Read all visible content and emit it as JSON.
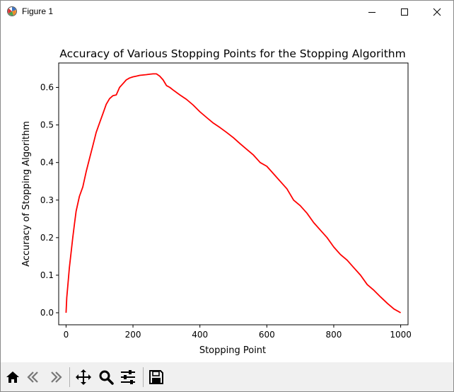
{
  "window": {
    "title": "Figure 1",
    "minimize_icon": "minimize-icon",
    "maximize_icon": "maximize-icon",
    "close_icon": "close-icon"
  },
  "toolbar": {
    "buttons": [
      {
        "name": "home",
        "icon": "home-icon"
      },
      {
        "name": "back",
        "icon": "back-arrow-icon"
      },
      {
        "name": "forward",
        "icon": "forward-arrow-icon"
      },
      {
        "name": "pan",
        "icon": "move-icon"
      },
      {
        "name": "zoom",
        "icon": "magnifier-icon"
      },
      {
        "name": "configure-subplots",
        "icon": "sliders-icon"
      },
      {
        "name": "save",
        "icon": "floppy-disk-icon"
      }
    ]
  },
  "chart_data": {
    "type": "line",
    "title": "Accuracy of Various Stopping Points for the Stopping Algorithm",
    "xlabel": "Stopping Point",
    "ylabel": "Accuracy of Stopping Algorithm",
    "xlim": [
      -22,
      1022
    ],
    "ylim": [
      -0.032,
      0.665
    ],
    "xticks": [
      0,
      200,
      400,
      600,
      800,
      1000
    ],
    "xtick_labels": [
      "0",
      "200",
      "400",
      "600",
      "800",
      "1000"
    ],
    "yticks": [
      0.0,
      0.1,
      0.2,
      0.3,
      0.4,
      0.5,
      0.6
    ],
    "ytick_labels": [
      "0.0",
      "0.1",
      "0.2",
      "0.3",
      "0.4",
      "0.5",
      "0.6"
    ],
    "grid": false,
    "series": [
      {
        "color": "#ff0000",
        "x": [
          0,
          2,
          5,
          10,
          15,
          20,
          25,
          30,
          40,
          50,
          60,
          70,
          80,
          90,
          100,
          110,
          120,
          130,
          140,
          150,
          160,
          170,
          180,
          190,
          200,
          210,
          220,
          230,
          240,
          250,
          260,
          270,
          280,
          290,
          300,
          310,
          320,
          340,
          360,
          380,
          400,
          420,
          440,
          460,
          480,
          500,
          520,
          540,
          560,
          580,
          600,
          620,
          640,
          660,
          680,
          700,
          720,
          740,
          760,
          780,
          800,
          820,
          840,
          860,
          880,
          900,
          920,
          940,
          960,
          980,
          1000
        ],
        "y": [
          0.0,
          0.04,
          0.07,
          0.12,
          0.16,
          0.2,
          0.235,
          0.27,
          0.31,
          0.335,
          0.375,
          0.41,
          0.445,
          0.48,
          0.505,
          0.53,
          0.555,
          0.57,
          0.578,
          0.58,
          0.6,
          0.61,
          0.62,
          0.625,
          0.628,
          0.63,
          0.632,
          0.633,
          0.634,
          0.635,
          0.636,
          0.636,
          0.63,
          0.62,
          0.605,
          0.6,
          0.593,
          0.58,
          0.568,
          0.553,
          0.535,
          0.52,
          0.505,
          0.493,
          0.48,
          0.466,
          0.45,
          0.435,
          0.42,
          0.4,
          0.39,
          0.37,
          0.35,
          0.33,
          0.3,
          0.285,
          0.265,
          0.24,
          0.22,
          0.2,
          0.175,
          0.155,
          0.14,
          0.12,
          0.1,
          0.075,
          0.06,
          0.042,
          0.025,
          0.01,
          0.0
        ]
      }
    ]
  }
}
